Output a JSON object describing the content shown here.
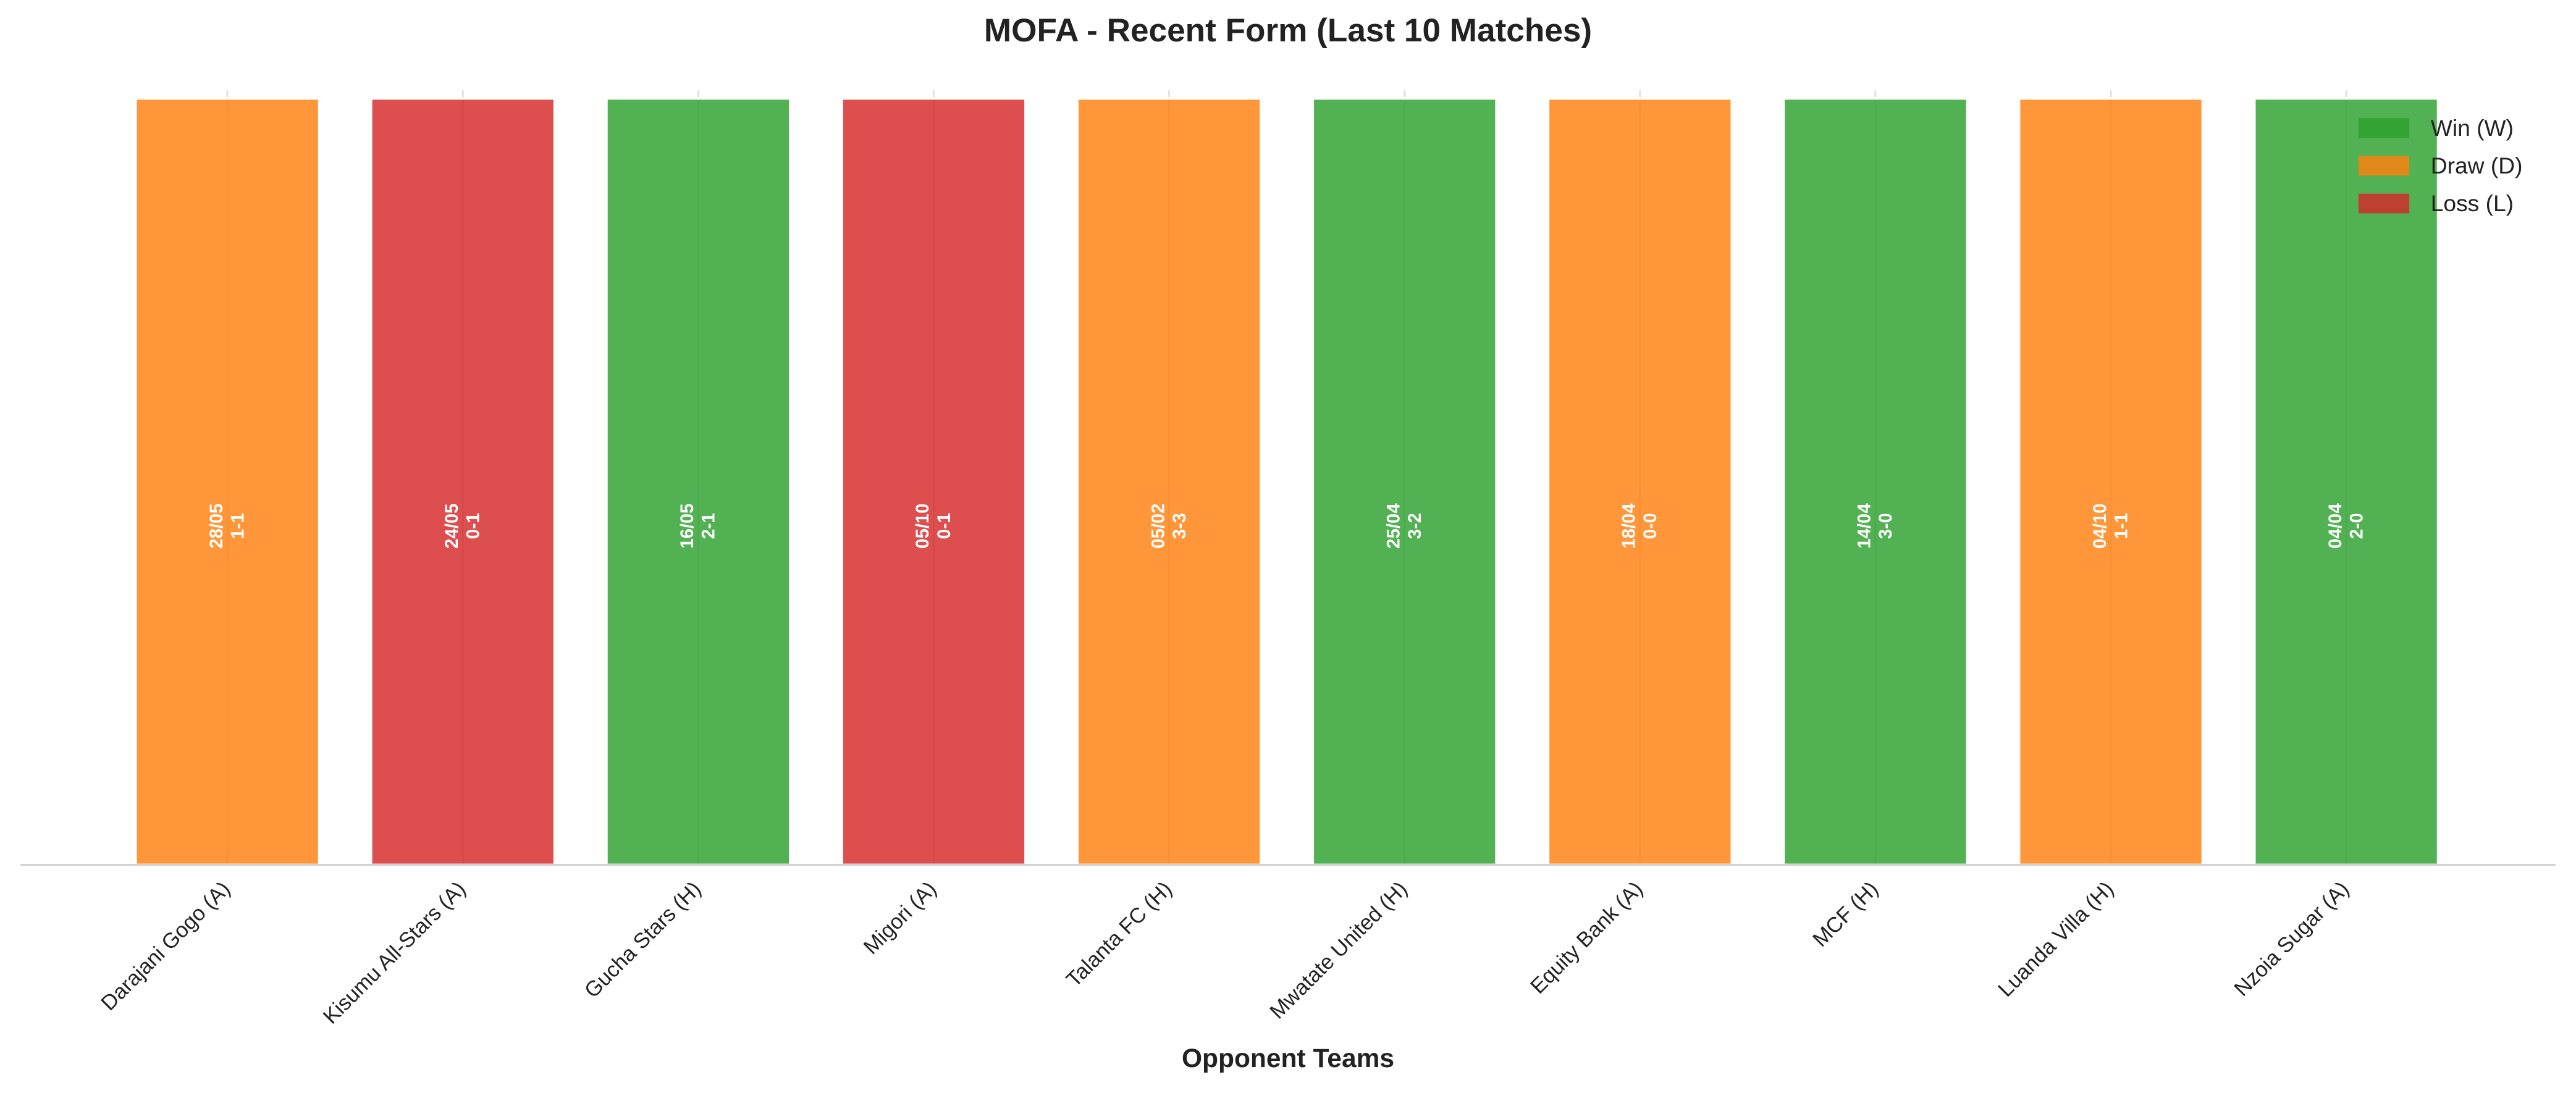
{
  "chart_data": {
    "type": "bar",
    "title": "MOFA - Recent Form (Last 10 Matches)",
    "x_label": "Opponent Teams",
    "categories": [
      "Darajani Gogo (A)",
      "Kisumu All-Stars (A)",
      "Gucha Stars (H)",
      "Migori (A)",
      "Talanta FC (H)",
      "Mwatate United (H)",
      "Equity Bank (A)",
      "MCF (H)",
      "Luanda Villa (H)",
      "Nzoia Sugar (A)"
    ],
    "values": [
      1,
      1,
      1,
      1,
      1,
      1,
      1,
      1,
      1,
      1
    ],
    "ylim": [
      0,
      1
    ],
    "dates": [
      "28/05",
      "24/05",
      "16/05",
      "05/10",
      "05/02",
      "25/04",
      "18/04",
      "14/04",
      "04/10",
      "04/04"
    ],
    "scores": [
      "1-1",
      "0-1",
      "2-1",
      "0-1",
      "3-3",
      "3-2",
      "0-0",
      "3-0",
      "1-1",
      "2-0"
    ],
    "bar_colors": [
      "#ff7f0e",
      "#d62728",
      "#2ca02c",
      "#d62728",
      "#ff7f0e",
      "#2ca02c",
      "#ff7f0e",
      "#2ca02c",
      "#ff7f0e",
      "#2ca02c"
    ],
    "legend": [
      {
        "name": "Win (W)",
        "color": "#2ca02c"
      },
      {
        "name": "Draw (D)",
        "color": "#ff7f0e"
      },
      {
        "name": "Loss (L)",
        "color": "#d62728"
      }
    ],
    "legend_position": "upper right",
    "grid": true
  }
}
